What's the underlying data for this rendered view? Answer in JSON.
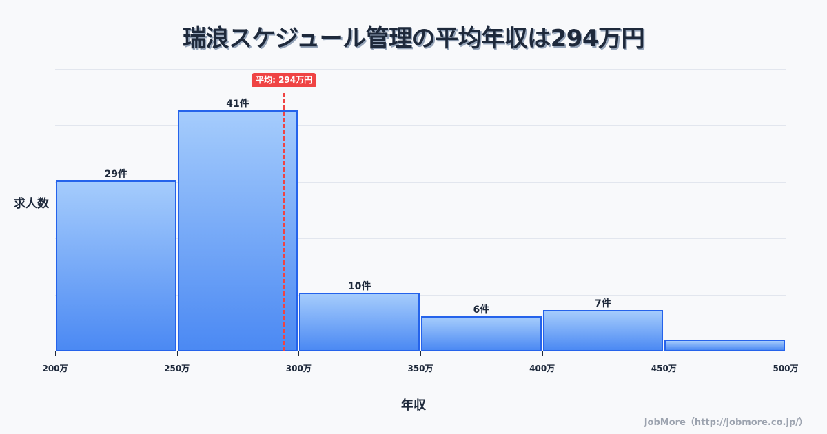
{
  "title": "瑞浪スケジュール管理の平均年収は294万円",
  "mean_badge": "平均: 294万円",
  "ylabel": "求人数",
  "xlabel": "年収",
  "credit": "JobMore（http://jobmore.co.jp/）",
  "colors": {
    "bar_border": "#2563eb",
    "bar_top": "#a5ccfc",
    "bar_bottom": "#4b89f3",
    "mean_line": "#ef4444",
    "text": "#1e293b"
  },
  "chart_data": {
    "type": "bar",
    "title": "瑞浪スケジュール管理の平均年収は294万円",
    "xlabel": "年収",
    "ylabel": "求人数",
    "categories": [
      "200万-250万",
      "250万-300万",
      "300万-350万",
      "350万-400万",
      "400万-450万",
      "450万-500万"
    ],
    "values": [
      29,
      41,
      10,
      6,
      7,
      2
    ],
    "value_labels": [
      "29件",
      "41件",
      "10件",
      "6件",
      "7件",
      ""
    ],
    "x_ticks": [
      "200万",
      "250万",
      "300万",
      "350万",
      "400万",
      "450万",
      "500万"
    ],
    "mean": 294,
    "mean_label": "平均: 294万円",
    "ylim": [
      0,
      48
    ],
    "grid": true,
    "legend": null
  }
}
